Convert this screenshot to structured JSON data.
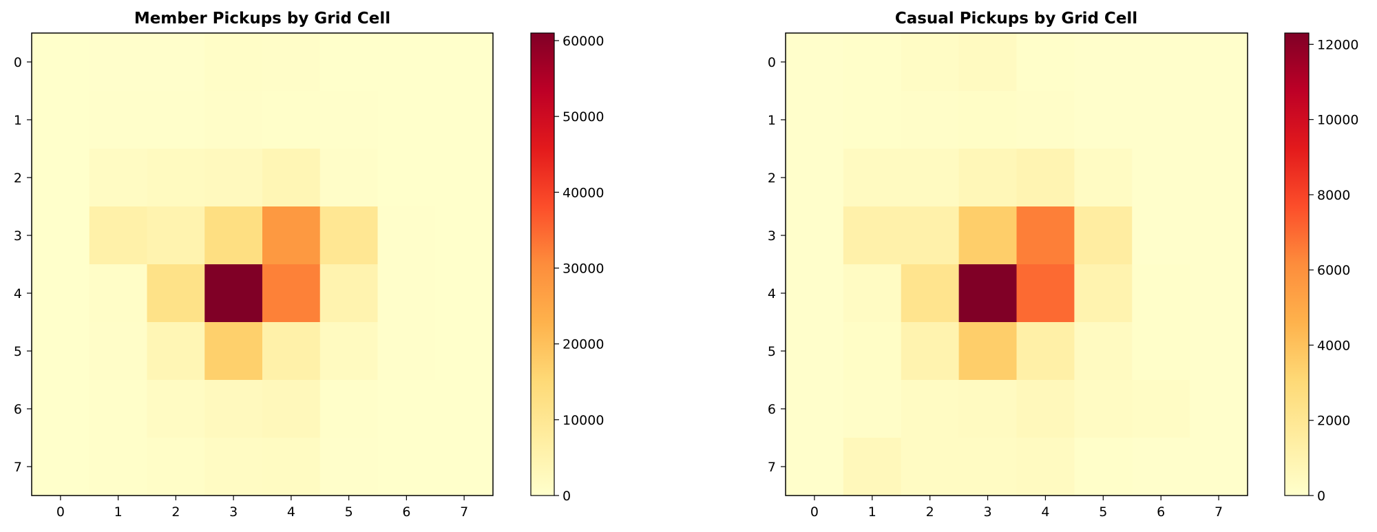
{
  "chart_data": [
    {
      "type": "heatmap",
      "title": "Member Pickups by Grid Cell",
      "xlabel": "",
      "ylabel": "",
      "x_ticks": [
        "0",
        "1",
        "2",
        "3",
        "4",
        "5",
        "6",
        "7"
      ],
      "y_ticks": [
        "0",
        "1",
        "2",
        "3",
        "4",
        "5",
        "6",
        "7"
      ],
      "colormap": "YlOrRd",
      "vmin": 0,
      "vmax": 61000,
      "colorbar_ticks": [
        0,
        10000,
        20000,
        30000,
        40000,
        50000,
        60000
      ],
      "colorbar_tick_labels": [
        "0",
        "10000",
        "20000",
        "30000",
        "40000",
        "50000",
        "60000"
      ],
      "values": [
        [
          100,
          250,
          250,
          900,
          700,
          200,
          100,
          100
        ],
        [
          100,
          300,
          400,
          700,
          600,
          300,
          100,
          100
        ],
        [
          150,
          1500,
          2000,
          2500,
          4000,
          700,
          200,
          100
        ],
        [
          200,
          6000,
          5000,
          13000,
          28000,
          10000,
          300,
          150
        ],
        [
          200,
          800,
          12000,
          61000,
          32000,
          5000,
          400,
          150
        ],
        [
          150,
          700,
          4000,
          17000,
          6000,
          2000,
          300,
          100
        ],
        [
          100,
          600,
          1500,
          2500,
          3000,
          600,
          200,
          100
        ],
        [
          100,
          500,
          800,
          1500,
          1800,
          300,
          150,
          100
        ]
      ]
    },
    {
      "type": "heatmap",
      "title": "Casual Pickups by Grid Cell",
      "xlabel": "",
      "ylabel": "",
      "x_ticks": [
        "0",
        "1",
        "2",
        "3",
        "4",
        "5",
        "6",
        "7"
      ],
      "y_ticks": [
        "0",
        "1",
        "2",
        "3",
        "4",
        "5",
        "6",
        "7"
      ],
      "colormap": "YlOrRd",
      "vmin": 0,
      "vmax": 12300,
      "colorbar_ticks": [
        0,
        2000,
        4000,
        6000,
        8000,
        10000,
        12000
      ],
      "colorbar_tick_labels": [
        "0",
        "2000",
        "4000",
        "6000",
        "8000",
        "10000",
        "12000"
      ],
      "values": [
        [
          50,
          100,
          250,
          400,
          100,
          50,
          50,
          50
        ],
        [
          50,
          100,
          150,
          200,
          150,
          50,
          50,
          50
        ],
        [
          50,
          400,
          400,
          700,
          900,
          300,
          50,
          50
        ],
        [
          50,
          1200,
          1200,
          3500,
          6500,
          1500,
          50,
          50
        ],
        [
          50,
          300,
          2200,
          12300,
          7000,
          1000,
          100,
          50
        ],
        [
          50,
          200,
          1000,
          3500,
          1300,
          400,
          100,
          50
        ],
        [
          50,
          150,
          300,
          400,
          600,
          300,
          250,
          50
        ],
        [
          50,
          600,
          300,
          300,
          400,
          100,
          50,
          50
        ]
      ]
    }
  ]
}
